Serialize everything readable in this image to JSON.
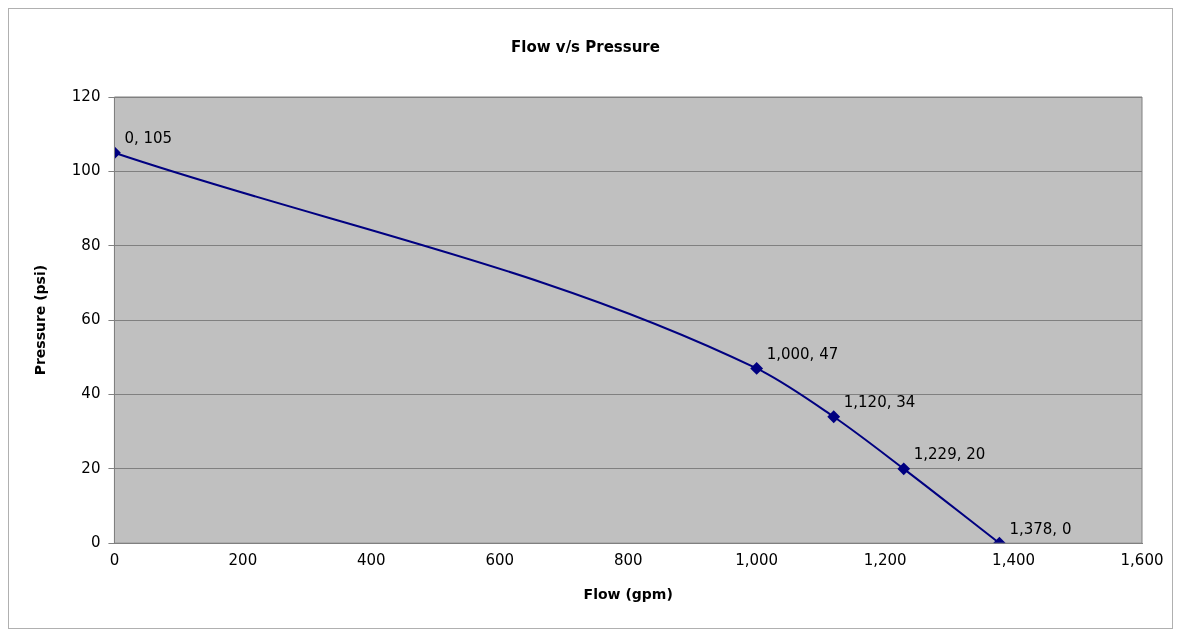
{
  "chart_data": {
    "type": "line",
    "title": "Flow v/s Pressure",
    "xlabel": "Flow (gpm)",
    "ylabel": "Pressure (psi)",
    "x": [
      0,
      1000,
      1120,
      1229,
      1378
    ],
    "series": [
      {
        "color": "#000080",
        "values": [
          105,
          47,
          34,
          20,
          0
        ],
        "value_labels": [
          "0, 105",
          "1,000, 47",
          "1,120, 34",
          "1,229, 20",
          "1,378, 0"
        ]
      }
    ],
    "xlim": [
      0,
      1600
    ],
    "xticks": [
      {
        "value": 0,
        "label": "0"
      },
      {
        "value": 200,
        "label": "200"
      },
      {
        "value": 400,
        "label": "400"
      },
      {
        "value": 600,
        "label": "600"
      },
      {
        "value": 800,
        "label": "800"
      },
      {
        "value": 1000,
        "label": "1,000"
      },
      {
        "value": 1200,
        "label": "1,200"
      },
      {
        "value": 1400,
        "label": "1,400"
      },
      {
        "value": 1600,
        "label": "1,600"
      }
    ],
    "ylim": [
      0,
      120
    ],
    "yticks": [
      0,
      20,
      40,
      60,
      80,
      100,
      120
    ],
    "grid": "y",
    "legend": false,
    "marker": "diamond",
    "line_style": "solid"
  }
}
